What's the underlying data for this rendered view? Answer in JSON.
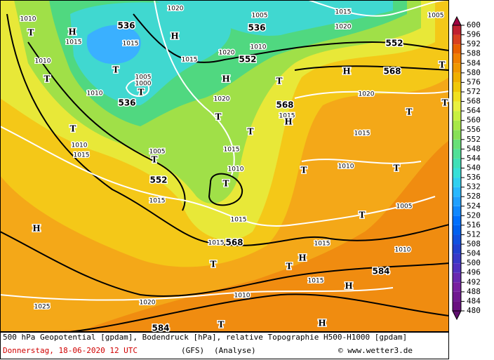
{
  "map": {
    "contour_labels": [
      "536",
      "536",
      "536",
      "552",
      "552",
      "552",
      "568",
      "568",
      "568",
      "584",
      "584"
    ],
    "isobar_labels": [
      "1010",
      "1020",
      "1005",
      "1015",
      "1020",
      "1005",
      "1015",
      "1015",
      "1020",
      "1010",
      "1015",
      "1010",
      "1005",
      "1000",
      "1010",
      "1020",
      "1020",
      "1015",
      "1015",
      "1010",
      "1015",
      "1005",
      "1015",
      "1010",
      "1010",
      "1015",
      "1005",
      "1015",
      "1015",
      "1015",
      "1010",
      "1015",
      "1010",
      "1025",
      "1020"
    ],
    "pressure_centers": [
      "T",
      "H",
      "H",
      "T",
      "T",
      "T",
      "H",
      "T",
      "H",
      "T",
      "T",
      "T",
      "T",
      "T",
      "H",
      "T",
      "T",
      "T",
      "T",
      "T",
      "T",
      "H",
      "H",
      "T",
      "T",
      "H",
      "T",
      "H"
    ]
  },
  "colorbar": {
    "ticks": [
      480,
      484,
      488,
      492,
      496,
      500,
      504,
      508,
      512,
      516,
      520,
      524,
      528,
      532,
      536,
      540,
      544,
      548,
      552,
      556,
      560,
      564,
      568,
      572,
      576,
      580,
      584,
      588,
      592,
      596,
      600
    ]
  },
  "footer": {
    "description": "500 hPa Geopotential [gpdam], Bodendruck [hPa], relative Topographie H500-H1000 [gpdam]",
    "date": "Donnerstag, 18-06-2020  12 UTC",
    "model": "(GFS)",
    "run": "(Analyse)",
    "copyright": "© www.wetter3.de"
  }
}
